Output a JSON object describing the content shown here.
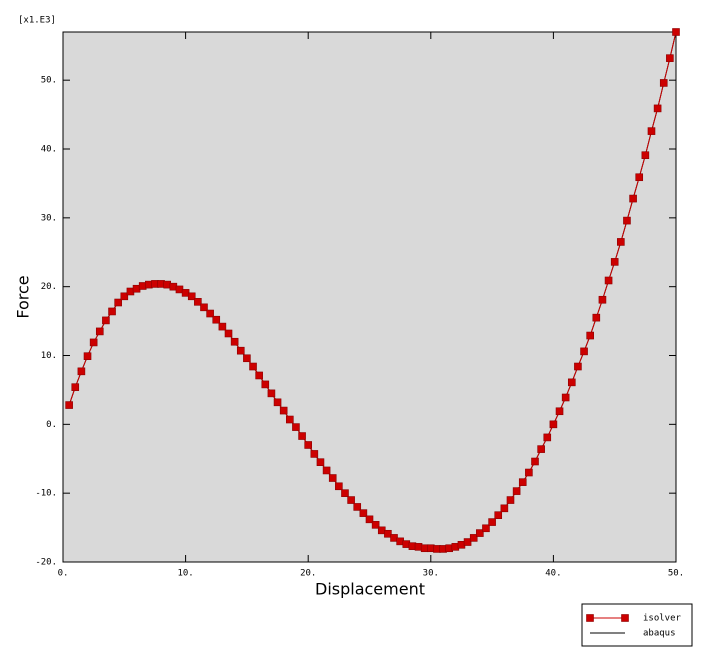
{
  "chart_data": {
    "type": "line",
    "multiplier": "[x1.E3]",
    "xlabel": "Displacement",
    "ylabel": "Force",
    "xlim": [
      0,
      50
    ],
    "ylim": [
      -20,
      57
    ],
    "xticks": [
      {
        "value": 0,
        "label": "0."
      },
      {
        "value": 10,
        "label": "10."
      },
      {
        "value": 20,
        "label": "20."
      },
      {
        "value": 30,
        "label": "30."
      },
      {
        "value": 40,
        "label": "40."
      },
      {
        "value": 50,
        "label": "50."
      }
    ],
    "yticks": [
      {
        "value": -20,
        "label": "-20."
      },
      {
        "value": -10,
        "label": "-10."
      },
      {
        "value": 0,
        "label": "0."
      },
      {
        "value": 10,
        "label": "10."
      },
      {
        "value": 20,
        "label": "20."
      },
      {
        "value": 30,
        "label": "30."
      },
      {
        "value": 40,
        "label": "40."
      },
      {
        "value": 50,
        "label": "50."
      }
    ],
    "background": "#d9d9d9",
    "x": [
      0.5,
      1,
      1.5,
      2,
      2.5,
      3,
      3.5,
      4,
      4.5,
      5,
      5.5,
      6,
      6.5,
      7,
      7.5,
      8,
      8.5,
      9,
      9.5,
      10,
      10.5,
      11,
      11.5,
      12,
      12.5,
      13,
      13.5,
      14,
      14.5,
      15,
      15.5,
      16,
      16.5,
      17,
      17.5,
      18,
      18.5,
      19,
      19.5,
      20,
      20.5,
      21,
      21.5,
      22,
      22.5,
      23,
      23.5,
      24,
      24.5,
      25,
      25.5,
      26,
      26.5,
      27,
      27.5,
      28,
      28.5,
      29,
      29.5,
      30,
      30.5,
      31,
      31.5,
      32,
      32.5,
      33,
      33.5,
      34,
      34.5,
      35,
      35.5,
      36,
      36.5,
      37,
      37.5,
      38,
      38.5,
      39,
      39.5,
      40,
      40.5,
      41,
      41.5,
      42,
      42.5,
      43,
      43.5,
      44,
      44.5,
      45,
      45.5,
      46,
      46.5,
      47,
      47.5,
      48,
      48.5,
      49,
      49.5,
      50
    ],
    "series": [
      {
        "name": "isolver",
        "color": "#cc0000",
        "marker": "square",
        "values": [
          2.8,
          5.4,
          7.7,
          9.9,
          11.9,
          13.5,
          15.1,
          16.4,
          17.7,
          18.6,
          19.3,
          19.7,
          20.1,
          20.3,
          20.4,
          20.4,
          20.3,
          20.0,
          19.6,
          19.1,
          18.6,
          17.8,
          17.0,
          16.1,
          15.2,
          14.2,
          13.2,
          12.0,
          10.7,
          9.6,
          8.4,
          7.1,
          5.8,
          4.5,
          3.2,
          2.0,
          0.7,
          -0.4,
          -1.7,
          -3.0,
          -4.3,
          -5.5,
          -6.7,
          -7.8,
          -9.0,
          -10.0,
          -11.0,
          -12.0,
          -12.9,
          -13.8,
          -14.6,
          -15.4,
          -15.9,
          -16.5,
          -17.0,
          -17.4,
          -17.7,
          -17.8,
          -18.0,
          -18.0,
          -18.1,
          -18.1,
          -18.0,
          -17.8,
          -17.5,
          -17.1,
          -16.5,
          -15.8,
          -15.1,
          -14.2,
          -13.2,
          -12.2,
          -11.0,
          -9.7,
          -8.4,
          -7.0,
          -5.4,
          -3.6,
          -1.9,
          0.0,
          1.9,
          3.9,
          6.1,
          8.4,
          10.6,
          12.9,
          15.5,
          18.1,
          20.9,
          23.6,
          26.5,
          29.6,
          32.8,
          35.9,
          39.1,
          42.6,
          45.9,
          49.6,
          53.2,
          57.0
        ]
      },
      {
        "name": "abaqus",
        "color": "#000000",
        "marker": "none",
        "values": [
          2.8,
          5.4,
          7.7,
          9.9,
          11.9,
          13.5,
          15.1,
          16.4,
          17.7,
          18.6,
          19.3,
          19.7,
          20.1,
          20.3,
          20.4,
          20.4,
          20.3,
          20.0,
          19.6,
          19.1,
          18.6,
          17.8,
          17.0,
          16.1,
          15.2,
          14.2,
          13.2,
          12.0,
          10.7,
          9.6,
          8.4,
          7.1,
          5.8,
          4.5,
          3.2,
          2.0,
          0.7,
          -0.4,
          -1.7,
          -3.0,
          -4.3,
          -5.5,
          -6.7,
          -7.8,
          -9.0,
          -10.0,
          -11.0,
          -12.0,
          -12.9,
          -13.8,
          -14.6,
          -15.4,
          -15.9,
          -16.5,
          -17.0,
          -17.4,
          -17.7,
          -17.8,
          -18.0,
          -18.0,
          -18.1,
          -18.1,
          -18.0,
          -17.8,
          -17.5,
          -17.1,
          -16.5,
          -15.8,
          -15.1,
          -14.2,
          -13.2,
          -12.2,
          -11.0,
          -9.7,
          -8.4,
          -7.0,
          -5.4,
          -3.6,
          -1.9,
          0.0,
          1.9,
          3.9,
          6.1,
          8.4,
          10.6,
          12.9,
          15.5,
          18.1,
          20.9,
          23.6,
          26.5,
          29.6,
          32.8,
          35.9,
          39.1,
          42.6,
          45.9,
          49.6,
          53.2,
          57.0
        ]
      }
    ]
  }
}
